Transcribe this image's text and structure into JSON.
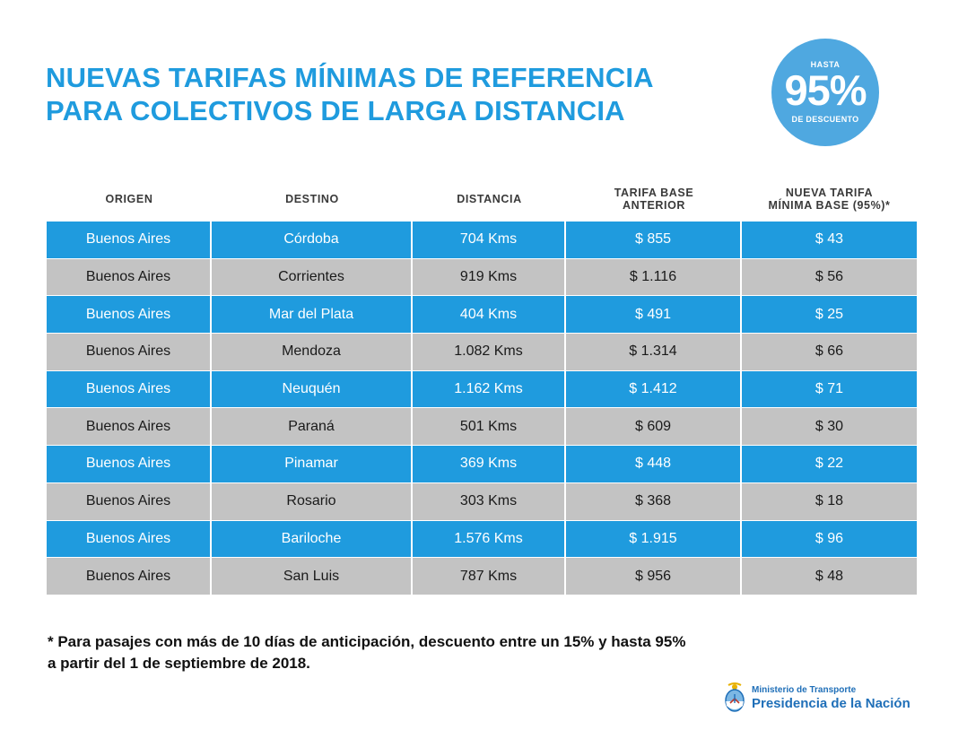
{
  "title": {
    "line1": "NUEVAS TARIFAS MÍNIMAS DE REFERENCIA",
    "line2": "PARA COLECTIVOS DE LARGA DISTANCIA"
  },
  "badge": {
    "top": "HASTA",
    "main": "95%",
    "bottom": "DE DESCUENTO"
  },
  "table": {
    "headers": {
      "origen": "ORIGEN",
      "destino": "DESTINO",
      "distancia": "DISTANCIA",
      "tarifa_anterior_1": "TARIFA BASE",
      "tarifa_anterior_2": "ANTERIOR",
      "nueva_tarifa_1": "NUEVA TARIFA",
      "nueva_tarifa_2": "MÍNIMA BASE (95%)*"
    },
    "rows": [
      {
        "origen": "Buenos Aires",
        "destino": "Córdoba",
        "distancia": "704 Kms",
        "anterior": "$ 855",
        "nueva": "$ 43"
      },
      {
        "origen": "Buenos Aires",
        "destino": "Corrientes",
        "distancia": "919 Kms",
        "anterior": "$ 1.116",
        "nueva": "$ 56"
      },
      {
        "origen": "Buenos Aires",
        "destino": "Mar del Plata",
        "distancia": "404 Kms",
        "anterior": "$ 491",
        "nueva": "$ 25"
      },
      {
        "origen": "Buenos Aires",
        "destino": "Mendoza",
        "distancia": "1.082 Kms",
        "anterior": "$ 1.314",
        "nueva": "$ 66"
      },
      {
        "origen": "Buenos Aires",
        "destino": "Neuquén",
        "distancia": "1.162 Kms",
        "anterior": "$ 1.412",
        "nueva": "$ 71"
      },
      {
        "origen": "Buenos Aires",
        "destino": "Paraná",
        "distancia": "501 Kms",
        "anterior": "$ 609",
        "nueva": "$ 30"
      },
      {
        "origen": "Buenos Aires",
        "destino": "Pinamar",
        "distancia": "369 Kms",
        "anterior": "$ 448",
        "nueva": "$ 22"
      },
      {
        "origen": "Buenos Aires",
        "destino": "Rosario",
        "distancia": "303 Kms",
        "anterior": "$ 368",
        "nueva": "$ 18"
      },
      {
        "origen": "Buenos Aires",
        "destino": "Bariloche",
        "distancia": "1.576 Kms",
        "anterior": "$ 1.915",
        "nueva": "$ 96"
      },
      {
        "origen": "Buenos Aires",
        "destino": "San Luis",
        "distancia": "787 Kms",
        "anterior": "$ 956",
        "nueva": "$ 48"
      }
    ]
  },
  "footnote": {
    "line1": "* Para pasajes con más de 10 días de anticipación, descuento entre un 15% y hasta 95%",
    "line2": "a partir del 1 de septiembre de 2018."
  },
  "logo": {
    "icon": "argentina-coat-of-arms-icon",
    "small": "Ministerio de Transporte",
    "big": "Presidencia de la Nación"
  },
  "colors": {
    "brand_blue": "#1f9bde",
    "badge_blue": "#4fa8e0",
    "row_gray": "#c3c3c3",
    "logo_blue": "#1f6fb8"
  }
}
